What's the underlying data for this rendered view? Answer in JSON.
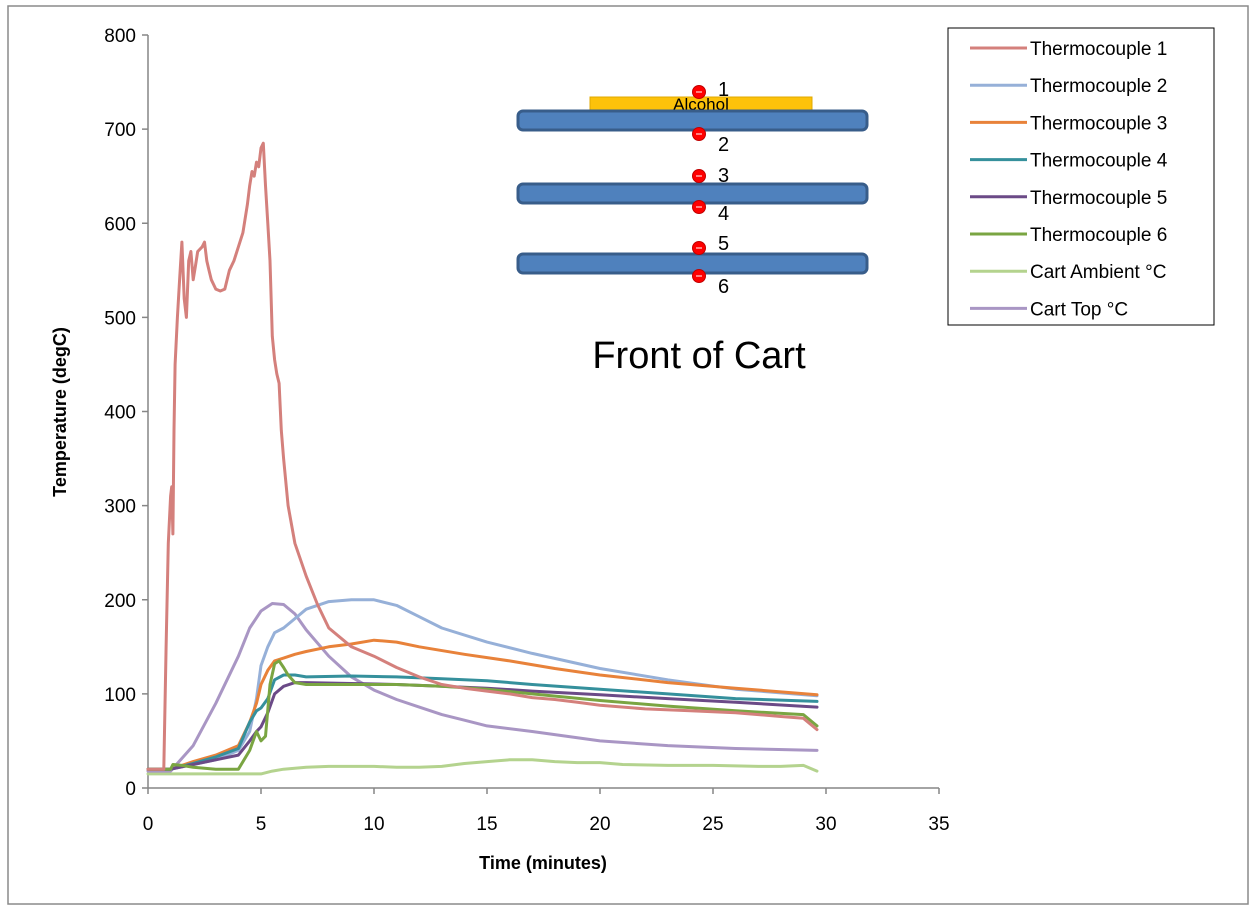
{
  "chart_data": {
    "type": "line",
    "xlabel": "Time (minutes)",
    "ylabel": "Temperature (degC)",
    "xlim": [
      0,
      35
    ],
    "ylim": [
      0,
      800
    ],
    "xticks": [
      0,
      5,
      10,
      15,
      20,
      25,
      30,
      35
    ],
    "yticks": [
      0,
      100,
      200,
      300,
      400,
      500,
      600,
      700,
      800
    ],
    "grid": false,
    "legend_position": "top-right",
    "series": [
      {
        "name": "Thermocouple 1",
        "color": "#d4807c",
        "x": [
          0,
          0.7,
          0.8,
          0.9,
          1.0,
          1.05,
          1.1,
          1.15,
          1.2,
          1.3,
          1.4,
          1.5,
          1.6,
          1.7,
          1.8,
          1.9,
          2.0,
          2.1,
          2.2,
          2.4,
          2.5,
          2.6,
          2.7,
          2.8,
          3.0,
          3.2,
          3.4,
          3.6,
          3.8,
          4.0,
          4.2,
          4.4,
          4.5,
          4.6,
          4.7,
          4.8,
          4.9,
          5.0,
          5.1,
          5.2,
          5.3,
          5.4,
          5.5,
          5.6,
          5.7,
          5.8,
          5.9,
          6.0,
          6.2,
          6.5,
          7.0,
          7.5,
          8.0,
          9.0,
          10.0,
          11.0,
          12.0,
          13.0,
          14.0,
          15.0,
          16.0,
          17.0,
          18.0,
          19.0,
          20.0,
          22.0,
          24.0,
          26.0,
          28.0,
          29.0,
          29.6
        ],
        "y": [
          20,
          20,
          150,
          260,
          310,
          320,
          270,
          380,
          450,
          500,
          540,
          580,
          520,
          500,
          560,
          570,
          540,
          555,
          570,
          575,
          580,
          560,
          550,
          540,
          530,
          528,
          530,
          550,
          560,
          575,
          590,
          620,
          640,
          655,
          650,
          665,
          660,
          680,
          685,
          640,
          600,
          560,
          480,
          455,
          440,
          430,
          380,
          350,
          300,
          260,
          225,
          195,
          170,
          150,
          140,
          128,
          118,
          110,
          106,
          103,
          100,
          96,
          94,
          91,
          88,
          84,
          82,
          80,
          76,
          74,
          62
        ]
      },
      {
        "name": "Thermocouple 2",
        "color": "#96b0d8",
        "x": [
          0,
          1.0,
          2.0,
          3.0,
          4.0,
          4.5,
          4.8,
          5.0,
          5.3,
          5.6,
          6.0,
          6.5,
          7.0,
          8.0,
          9.0,
          10.0,
          11.0,
          12.0,
          13.0,
          15.0,
          17.0,
          20.0,
          23.0,
          26.0,
          29.6
        ],
        "y": [
          20,
          20,
          25,
          30,
          40,
          60,
          95,
          130,
          150,
          165,
          170,
          180,
          190,
          198,
          200,
          200,
          194,
          182,
          170,
          155,
          143,
          127,
          115,
          105,
          98
        ]
      },
      {
        "name": "Thermocouple 3",
        "color": "#e8823a",
        "x": [
          0,
          1.0,
          2.0,
          3.0,
          4.0,
          4.5,
          4.8,
          5.0,
          5.3,
          5.6,
          6.0,
          6.5,
          7.0,
          8.0,
          9.0,
          10.0,
          11.0,
          12.0,
          14.0,
          16.0,
          18.0,
          20.0,
          23.0,
          26.0,
          29.6
        ],
        "y": [
          20,
          20,
          28,
          35,
          45,
          70,
          90,
          110,
          125,
          135,
          138,
          142,
          145,
          150,
          153,
          157,
          155,
          150,
          142,
          135,
          127,
          120,
          112,
          106,
          99
        ]
      },
      {
        "name": "Thermocouple 4",
        "color": "#35909c",
        "x": [
          0,
          1.0,
          2.0,
          3.0,
          4.0,
          4.5,
          4.8,
          5.0,
          5.3,
          5.6,
          6.0,
          6.5,
          7.0,
          9.0,
          11.0,
          13.0,
          15.0,
          17.0,
          20.0,
          23.0,
          26.0,
          29.6
        ],
        "y": [
          20,
          20,
          26,
          33,
          42,
          70,
          82,
          85,
          95,
          115,
          120,
          120,
          118,
          119,
          118,
          116,
          114,
          110,
          105,
          100,
          95,
          92
        ]
      },
      {
        "name": "Thermocouple 5",
        "color": "#6b4a87",
        "x": [
          0,
          1.0,
          2.0,
          3.0,
          4.0,
          4.5,
          4.8,
          5.0,
          5.3,
          5.6,
          6.0,
          6.5,
          7.0,
          9.0,
          11.0,
          13.0,
          15.0,
          17.0,
          20.0,
          23.0,
          26.0,
          29.6
        ],
        "y": [
          20,
          20,
          25,
          30,
          35,
          50,
          60,
          65,
          80,
          100,
          108,
          112,
          112,
          111,
          110,
          108,
          106,
          103,
          99,
          95,
          91,
          86
        ]
      },
      {
        "name": "Thermocouple 6",
        "color": "#7aa542",
        "x": [
          0,
          1.0,
          1.1,
          1.5,
          2.0,
          3.0,
          4.0,
          4.5,
          4.8,
          5.0,
          5.2,
          5.4,
          5.6,
          5.8,
          6.0,
          6.2,
          6.5,
          7.0,
          9.0,
          11.0,
          13.0,
          15.0,
          17.0,
          20.0,
          23.0,
          26.0,
          29.0,
          29.6
        ],
        "y": [
          20,
          20,
          25,
          24,
          22,
          20,
          20,
          40,
          60,
          50,
          55,
          110,
          132,
          135,
          128,
          120,
          112,
          110,
          110,
          110,
          108,
          105,
          100,
          93,
          87,
          82,
          78,
          66
        ]
      },
      {
        "name": "Cart Ambient °C",
        "color": "#b4d38e",
        "x": [
          0,
          2.0,
          4.0,
          5.0,
          5.5,
          6.0,
          7.0,
          8.0,
          9.0,
          10.0,
          11.0,
          12.0,
          13.0,
          14.0,
          15.0,
          16.0,
          17.0,
          18.0,
          19.0,
          20.0,
          21.0,
          23.0,
          25.0,
          27.0,
          28.0,
          29.0,
          29.6
        ],
        "y": [
          15,
          15,
          15,
          15,
          18,
          20,
          22,
          23,
          23,
          23,
          22,
          22,
          23,
          26,
          28,
          30,
          30,
          28,
          27,
          27,
          25,
          24,
          24,
          23,
          23,
          24,
          18
        ]
      },
      {
        "name": "Cart Top °C",
        "color": "#a996c4",
        "x": [
          0,
          1.0,
          2.0,
          3.0,
          4.0,
          4.5,
          5.0,
          5.5,
          6.0,
          6.5,
          7.0,
          8.0,
          9.0,
          10.0,
          11.0,
          12.0,
          13.0,
          14.0,
          15.0,
          17.0,
          20.0,
          23.0,
          26.0,
          29.6
        ],
        "y": [
          18,
          18,
          45,
          90,
          140,
          170,
          188,
          196,
          195,
          185,
          168,
          140,
          118,
          104,
          94,
          86,
          78,
          72,
          66,
          60,
          50,
          45,
          42,
          40
        ]
      }
    ]
  },
  "diagram": {
    "title": "Front of Cart",
    "fuel_label": "Alcohol",
    "point_labels": [
      "1",
      "2",
      "3",
      "4",
      "5",
      "6"
    ]
  }
}
